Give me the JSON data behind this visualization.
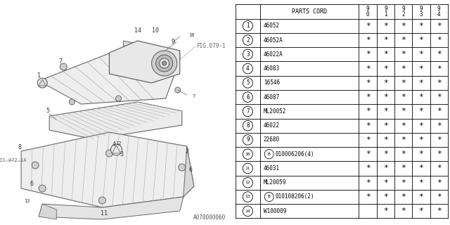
{
  "catalog_code": "A070000060",
  "parts": [
    {
      "num": 1,
      "code": "46052",
      "cols": [
        "*",
        "*",
        "*",
        "*",
        "*"
      ]
    },
    {
      "num": 2,
      "code": "46052A",
      "cols": [
        "*",
        "*",
        "*",
        "*",
        "*"
      ]
    },
    {
      "num": 3,
      "code": "46022A",
      "cols": [
        "*",
        "*",
        "*",
        "*",
        "*"
      ]
    },
    {
      "num": 4,
      "code": "46083",
      "cols": [
        "*",
        "*",
        "*",
        "*",
        "*"
      ]
    },
    {
      "num": 5,
      "code": "16546",
      "cols": [
        "*",
        "*",
        "*",
        "*",
        "*"
      ]
    },
    {
      "num": 6,
      "code": "46087",
      "cols": [
        "*",
        "*",
        "*",
        "*",
        "*"
      ]
    },
    {
      "num": 7,
      "code": "ML20052",
      "cols": [
        "*",
        "*",
        "*",
        "*",
        "*"
      ]
    },
    {
      "num": 8,
      "code": "46022",
      "cols": [
        "*",
        "*",
        "*",
        "*",
        "*"
      ]
    },
    {
      "num": 9,
      "code": "22680",
      "cols": [
        "*",
        "*",
        "*",
        "*",
        "*"
      ]
    },
    {
      "num": 10,
      "code": "B010006206(4)",
      "cols": [
        "*",
        "*",
        "*",
        "*",
        "*"
      ]
    },
    {
      "num": 11,
      "code": "46031",
      "cols": [
        "*",
        "*",
        "*",
        "*",
        "*"
      ]
    },
    {
      "num": 12,
      "code": "ML20059",
      "cols": [
        "*",
        "*",
        "*",
        "*",
        "*"
      ]
    },
    {
      "num": 13,
      "code": "B010108206(2)",
      "cols": [
        "*",
        "*",
        "*",
        "*",
        "*"
      ]
    },
    {
      "num": 14,
      "code": "W100009",
      "cols": [
        "",
        "*",
        "*",
        "*",
        "*"
      ]
    }
  ],
  "col_headers": [
    "9\n0",
    "9\n1",
    "9\n2",
    "9\n3",
    "9\n4"
  ],
  "header_label": "PARTS CORD",
  "bg_color": "#ffffff",
  "line_color": "#000000",
  "text_color": "#000000"
}
